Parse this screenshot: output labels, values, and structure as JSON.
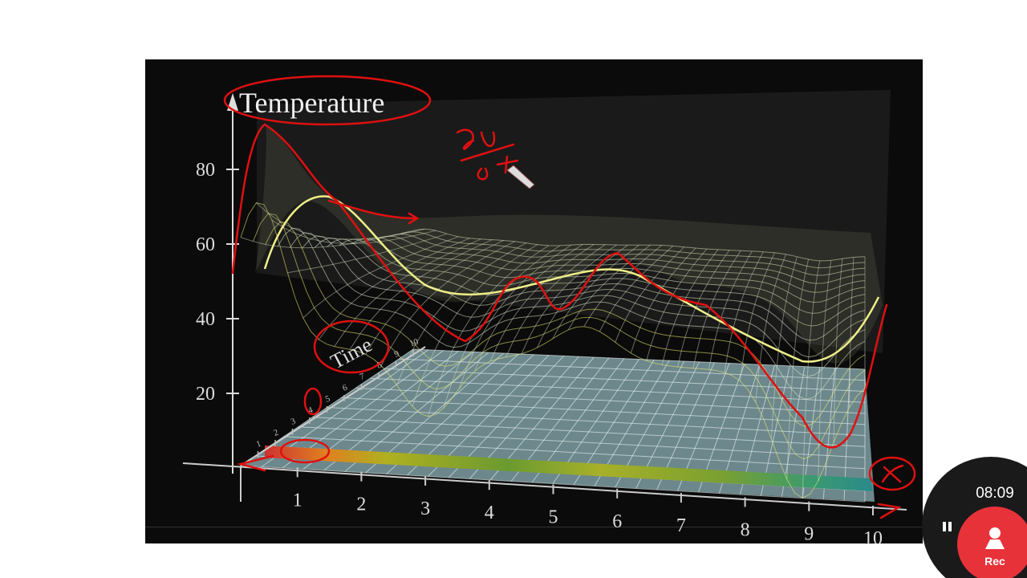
{
  "video": {
    "y_axis": {
      "label": "Temperature",
      "ticks": [
        20,
        40,
        60,
        80
      ]
    },
    "time_axis": {
      "label": "Time",
      "ticks": [
        1,
        2,
        3,
        4,
        5,
        6,
        7,
        8,
        9,
        10
      ]
    },
    "x_axis": {
      "ticks": [
        1,
        2,
        3,
        4,
        5,
        6,
        7,
        8,
        9,
        10
      ]
    }
  },
  "recorder": {
    "time": "08:09",
    "button": "Rec"
  }
}
